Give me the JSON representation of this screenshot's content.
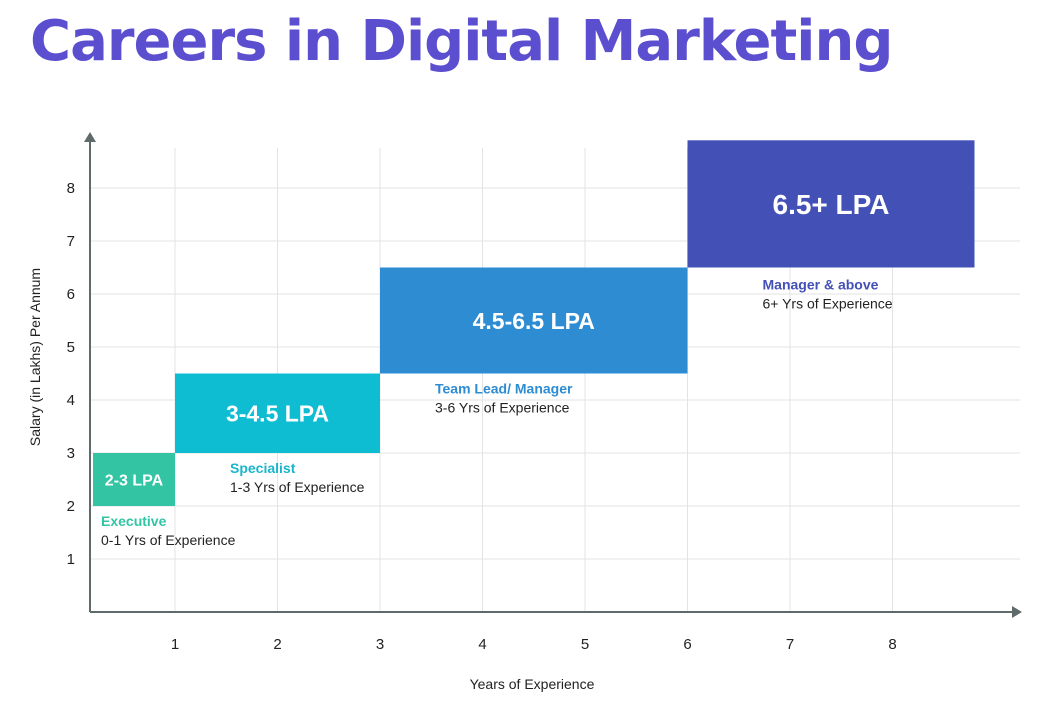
{
  "title": "Careers in Digital Marketing",
  "chart_data": {
    "type": "bar",
    "xlabel": "Years of Experience",
    "ylabel": "Salary (in Lakhs) Per Annum",
    "xlim": [
      0.2,
      9.3
    ],
    "ylim": [
      0,
      8.9
    ],
    "x_ticks": [
      1,
      2,
      3,
      4,
      5,
      6,
      7,
      8
    ],
    "y_ticks": [
      1,
      2,
      3,
      4,
      5,
      6,
      7,
      8
    ],
    "grid": true,
    "bands": [
      {
        "label": "2-3 LPA",
        "role": "Executive",
        "experience": "0-1 Yrs of Experience",
        "x": [
          0.2,
          1
        ],
        "y": [
          2,
          3
        ],
        "color": "#33c4a4",
        "role_color": "#33c4a4"
      },
      {
        "label": "3-4.5 LPA",
        "role": "Specialist",
        "experience": "1-3 Yrs of Experience",
        "x": [
          1,
          3
        ],
        "y": [
          3,
          4.5
        ],
        "color": "#0fbdd3",
        "role_color": "#1ab5cc"
      },
      {
        "label": "4.5-6.5 LPA",
        "role": "Team Lead/ Manager",
        "experience": "3-6 Yrs of Experience",
        "x": [
          3,
          6
        ],
        "y": [
          4.5,
          6.5
        ],
        "color": "#2e8cd3",
        "role_color": "#2e8cd3"
      },
      {
        "label": "6.5+ LPA",
        "role": "Manager & above",
        "experience": "6+ Yrs of Experience",
        "x": [
          6,
          8.8
        ],
        "y": [
          6.5,
          8.9
        ],
        "color": "#4351b7",
        "role_color": "#4351b7"
      }
    ]
  }
}
